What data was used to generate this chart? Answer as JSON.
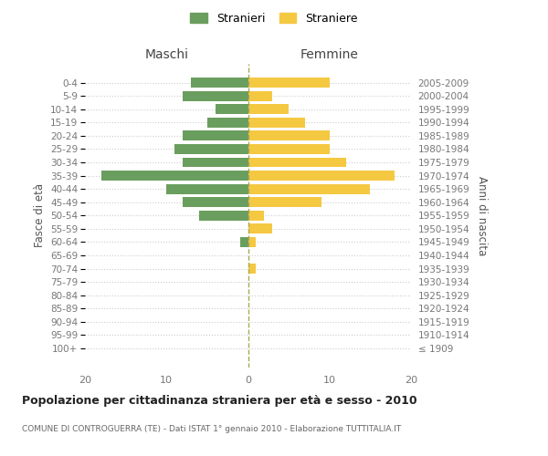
{
  "age_groups": [
    "100+",
    "95-99",
    "90-94",
    "85-89",
    "80-84",
    "75-79",
    "70-74",
    "65-69",
    "60-64",
    "55-59",
    "50-54",
    "45-49",
    "40-44",
    "35-39",
    "30-34",
    "25-29",
    "20-24",
    "15-19",
    "10-14",
    "5-9",
    "0-4"
  ],
  "birth_years": [
    "≤ 1909",
    "1910-1914",
    "1915-1919",
    "1920-1924",
    "1925-1929",
    "1930-1934",
    "1935-1939",
    "1940-1944",
    "1945-1949",
    "1950-1954",
    "1955-1959",
    "1960-1964",
    "1965-1969",
    "1970-1974",
    "1975-1979",
    "1980-1984",
    "1985-1989",
    "1990-1994",
    "1995-1999",
    "2000-2004",
    "2005-2009"
  ],
  "maschi": [
    0,
    0,
    0,
    0,
    0,
    0,
    0,
    0,
    1,
    0,
    6,
    8,
    10,
    18,
    8,
    9,
    8,
    5,
    4,
    8,
    7
  ],
  "femmine": [
    0,
    0,
    0,
    0,
    0,
    0,
    1,
    0,
    1,
    3,
    2,
    9,
    15,
    18,
    12,
    10,
    10,
    7,
    5,
    3,
    10
  ],
  "maschi_color": "#6a9e5e",
  "femmine_color": "#f5c842",
  "bg_color": "#ffffff",
  "grid_color": "#cccccc",
  "title": "Popolazione per cittadinanza straniera per età e sesso - 2010",
  "subtitle": "COMUNE DI CONTROGUERRA (TE) - Dati ISTAT 1° gennaio 2010 - Elaborazione TUTTITALIA.IT",
  "legend_maschi": "Stranieri",
  "legend_femmine": "Straniere",
  "ylabel_left": "Fasce di età",
  "ylabel_right": "Anni di nascita",
  "header_maschi": "Maschi",
  "header_femmine": "Femmine",
  "xlim": 20
}
